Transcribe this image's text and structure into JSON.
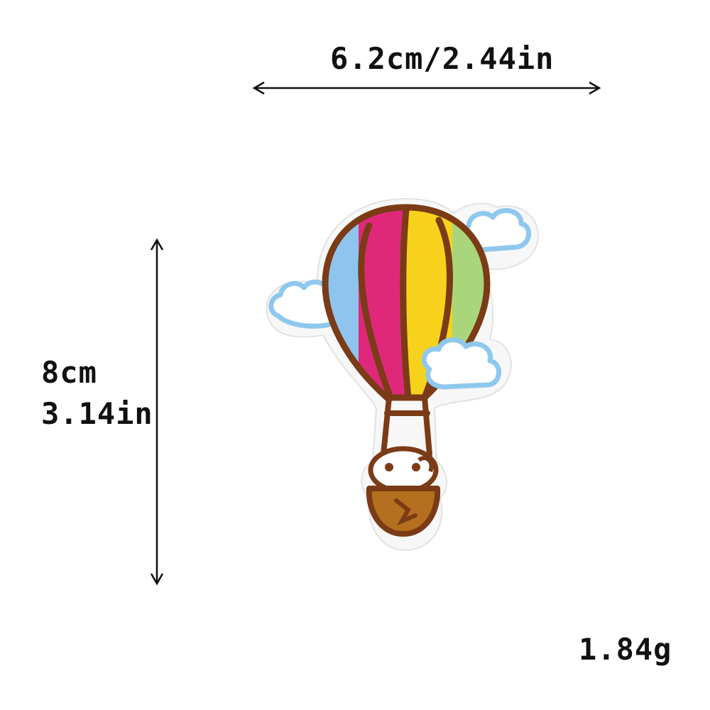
{
  "dimensions": {
    "width_text": "6.2cm/2.44in",
    "height_cm_text": "8cm",
    "height_in_text": "3.14in",
    "weight_text": "1.84g"
  },
  "patch": {
    "subject": "hot-air-balloon embroidered patch with clouds and basket passenger",
    "colors": {
      "outline": "#7a3b16",
      "blue_panel": "#8fc4ee",
      "pink_panel": "#e0287a",
      "yellow_panel": "#f6d21c",
      "green_panel": "#a9d67a",
      "basket": "#b5701f",
      "cloud_fill": "#ffffff",
      "cloud_edge": "#8fc8ee",
      "felt_border": "#f5f5f5"
    }
  }
}
